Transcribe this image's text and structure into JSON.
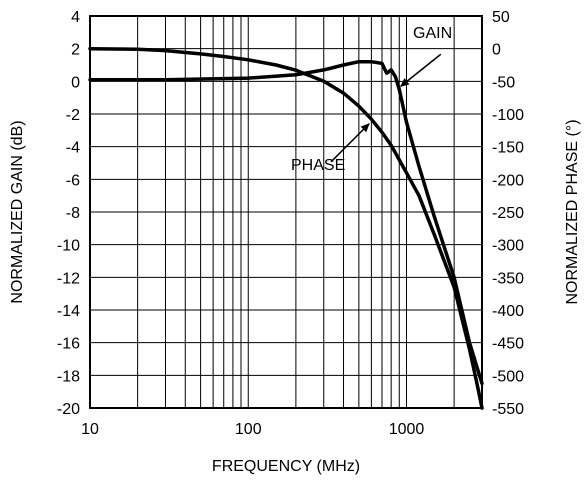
{
  "chart_data": {
    "type": "line",
    "title": "",
    "xlabel": "FREQUENCY (MHz)",
    "ylabel_left": "NORMALIZED GAIN (dB)",
    "ylabel_right": "NORMALIZED PHASE (°)",
    "x_scale": "log",
    "xlim": [
      10,
      3000
    ],
    "ylim_left": [
      -20,
      4
    ],
    "ylim_right": [
      -550,
      50
    ],
    "x_tick_labels": [
      "10",
      "100",
      "1000"
    ],
    "x_tick_values": [
      10,
      100,
      1000
    ],
    "y_left_ticks": [
      4,
      2,
      0,
      -2,
      -4,
      -6,
      -8,
      -10,
      -12,
      -14,
      -16,
      -18,
      -20
    ],
    "y_left_tick_labels": [
      "4",
      "2",
      "0",
      "-2",
      "-4",
      "-6",
      "-8",
      "-10",
      "-12",
      "-14",
      "-16",
      "-18",
      "-20"
    ],
    "y_right_ticks": [
      50,
      0,
      -50,
      -100,
      -150,
      -200,
      -250,
      -300,
      -350,
      -400,
      -450,
      -500,
      -550
    ],
    "y_right_tick_labels": [
      "50",
      "0",
      "-50",
      "-100",
      "-150",
      "-200",
      "-250",
      "-300",
      "-350",
      "-400",
      "-450",
      "-500",
      "-550"
    ],
    "grid": true,
    "legend": "none",
    "series": [
      {
        "name": "GAIN",
        "axis": "left",
        "x": [
          10,
          30,
          100,
          200,
          300,
          400,
          500,
          600,
          700,
          750,
          800,
          850,
          900,
          1000,
          1200,
          1500,
          2000,
          2500,
          3000
        ],
        "values": [
          0.1,
          0.1,
          0.2,
          0.4,
          0.7,
          1.0,
          1.2,
          1.2,
          1.1,
          0.5,
          0.7,
          0.3,
          -0.5,
          -2.5,
          -5.2,
          -8.3,
          -12.0,
          -16.0,
          -18.5
        ]
      },
      {
        "name": "PHASE",
        "axis": "right",
        "x": [
          10,
          20,
          30,
          50,
          70,
          100,
          150,
          200,
          300,
          400,
          500,
          600,
          700,
          800,
          1000,
          1200,
          1500,
          2000,
          2500,
          2800,
          3000
        ],
        "values": [
          0,
          -1,
          -3,
          -8,
          -12,
          -17,
          -25,
          -33,
          -50,
          -68,
          -88,
          -108,
          -128,
          -148,
          -190,
          -225,
          -285,
          -365,
          -460,
          -515,
          -550
        ]
      }
    ],
    "annotations": [
      {
        "text": "GAIN",
        "points_to": {
          "series": "GAIN",
          "x": 920,
          "y": -0.3
        }
      },
      {
        "text": "PHASE",
        "points_to": {
          "series": "PHASE",
          "x": 580,
          "y": -115
        }
      }
    ]
  }
}
